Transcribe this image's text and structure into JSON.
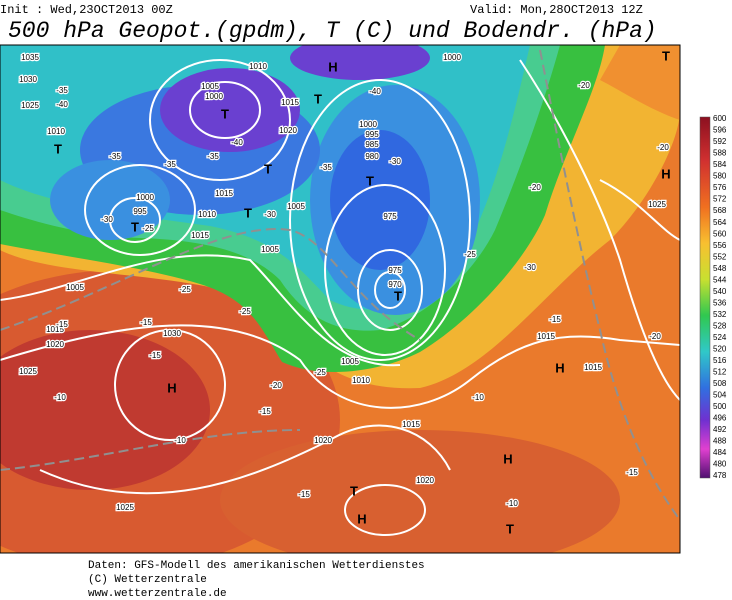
{
  "header": {
    "init": "Init : Wed,23OCT2013 00Z",
    "valid": "Valid: Mon,28OCT2013 12Z",
    "title": "500 hPa Geopot.(gpdm), T (C) und Bodendr. (hPa)"
  },
  "map": {
    "labels": [
      "1035",
      "1030",
      "1025",
      "-40",
      "-35",
      "1010",
      "1005",
      "1000",
      "T",
      "1015",
      "T",
      "H",
      "-40",
      "1000",
      "-20",
      "T",
      "1010",
      "T",
      "-35",
      "-35",
      "-35",
      "1020",
      "-40",
      "T",
      "1000",
      "995",
      "985",
      "980",
      "-30",
      "-35",
      "T",
      "-20",
      "-20",
      "H",
      "1000",
      "995",
      "-30",
      "T",
      "-25",
      "1015",
      "1010",
      "T",
      "-30",
      "1005",
      "975",
      "1025",
      "1015",
      "1005",
      "-25",
      "975",
      "970",
      "T",
      "1005",
      "-25",
      "-25",
      "1015",
      "1020",
      "-15",
      "-15",
      "1030",
      "-15",
      "H",
      "1025",
      "-10",
      "-10",
      "1020",
      "1005",
      "1010",
      "-20",
      "-15",
      "1015",
      "1015",
      "H",
      "1015",
      "-15",
      "-20",
      "1025",
      "-15",
      "T",
      "H",
      "1020",
      "H",
      "-10",
      "T",
      "-10",
      "-15",
      "-30",
      "-25"
    ]
  },
  "colorbar": {
    "labels": [
      600,
      596,
      592,
      588,
      584,
      580,
      576,
      572,
      568,
      564,
      560,
      556,
      552,
      548,
      544,
      540,
      536,
      532,
      528,
      524,
      520,
      516,
      512,
      508,
      504,
      500,
      496,
      492,
      488,
      484,
      480,
      478
    ]
  },
  "footer": {
    "lines": [
      "Daten: GFS-Modell des amerikanischen Wetterdienstes",
      "(C) Wetterzentrale",
      "www.wetterzentrale.de"
    ]
  }
}
